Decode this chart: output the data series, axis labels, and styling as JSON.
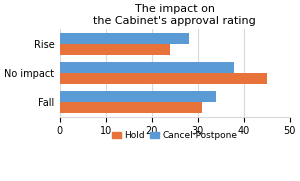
{
  "title": "The impact on\nthe Cabinet's approval rating",
  "categories": [
    "Rise",
    "No impact",
    "Fall"
  ],
  "hold_values": [
    24,
    45,
    31
  ],
  "cancel_postpone_values": [
    28,
    38,
    34
  ],
  "hold_color": "#E8733A",
  "cancel_color": "#5B9BD5",
  "xlim": [
    0,
    50
  ],
  "xticks": [
    0,
    10,
    20,
    30,
    40,
    50
  ],
  "legend_hold": "Hold",
  "legend_cancel": "Cancel·Postpone",
  "bar_height": 0.38,
  "background_color": "#ffffff",
  "grid_color": "#d9d9d9",
  "title_fontsize": 8,
  "tick_fontsize": 7,
  "legend_fontsize": 6.5
}
